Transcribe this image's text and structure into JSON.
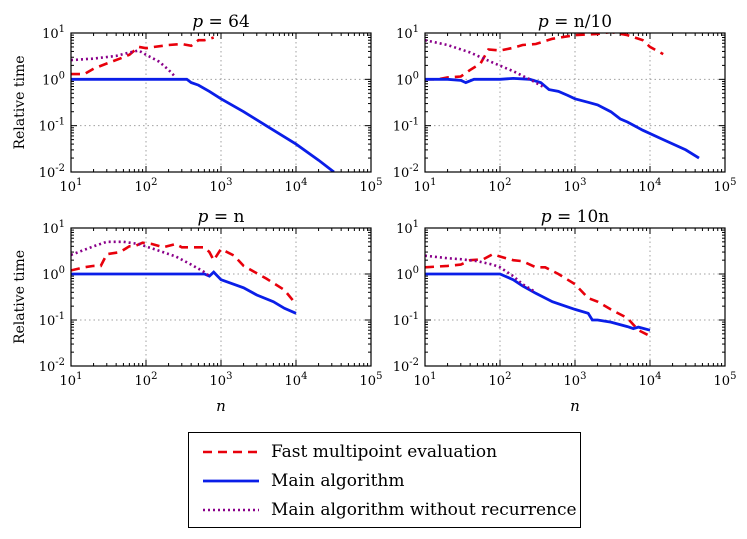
{
  "chart_data": {
    "type": "line",
    "xscale": "log",
    "yscale": "log",
    "xlim": [
      10,
      100000
    ],
    "ylim": [
      0.01,
      10
    ],
    "x_tick_labels": [
      "10^1",
      "10^2",
      "10^3",
      "10^4",
      "10^5"
    ],
    "y_tick_labels": [
      "10^-2",
      "10^-1",
      "10^0",
      "10^1"
    ],
    "grid": true,
    "legend_position": "bottom-center",
    "styles": {
      "fast": {
        "color": "#e8000b",
        "dash": "9,6",
        "width": 2.6
      },
      "main": {
        "color": "#0a1ee8",
        "dash": "",
        "width": 2.8
      },
      "norec": {
        "color": "#8a008a",
        "dash": "2,3",
        "width": 2.6
      }
    },
    "legend": [
      {
        "series": "fast",
        "label": "Fast multipoint evaluation"
      },
      {
        "series": "main",
        "label": "Main algorithm"
      },
      {
        "series": "norec",
        "label": "Main algorithm without recurrence"
      }
    ],
    "panels": [
      {
        "title": "p = 64",
        "title_var": "p",
        "title_rest": "= 64",
        "xlabel": "",
        "ylabel": "Relative time",
        "series": {
          "fast": [
            [
              10,
              1.3
            ],
            [
              15,
              1.3
            ],
            [
              20,
              1.7
            ],
            [
              30,
              2.2
            ],
            [
              45,
              2.8
            ],
            [
              60,
              3.4
            ],
            [
              80,
              5.0
            ],
            [
              100,
              4.7
            ],
            [
              130,
              5.0
            ],
            [
              200,
              5.5
            ],
            [
              300,
              5.8
            ],
            [
              400,
              5.3
            ],
            [
              500,
              7.0
            ],
            [
              600,
              7.0
            ],
            [
              800,
              8.0
            ]
          ],
          "main": [
            [
              10,
              1.0
            ],
            [
              50,
              1.0
            ],
            [
              100,
              1.0
            ],
            [
              200,
              1.0
            ],
            [
              350,
              1.0
            ],
            [
              400,
              0.85
            ],
            [
              500,
              0.75
            ],
            [
              700,
              0.55
            ],
            [
              1000,
              0.38
            ],
            [
              2000,
              0.2
            ],
            [
              4000,
              0.1
            ],
            [
              10000,
              0.04
            ],
            [
              20000,
              0.018
            ],
            [
              32000,
              0.01
            ]
          ],
          "norec": [
            [
              10,
              2.6
            ],
            [
              20,
              2.8
            ],
            [
              40,
              3.2
            ],
            [
              60,
              3.8
            ],
            [
              80,
              4.2
            ],
            [
              100,
              3.4
            ],
            [
              150,
              2.4
            ],
            [
              200,
              1.6
            ],
            [
              250,
              1.1
            ]
          ]
        }
      },
      {
        "title": "p = n/10",
        "title_var": "p",
        "title_rest": "= n/10",
        "xlabel": "",
        "ylabel": "",
        "series": {
          "fast": [
            [
              10,
              1.0
            ],
            [
              15,
              1.0
            ],
            [
              20,
              1.1
            ],
            [
              30,
              1.15
            ],
            [
              40,
              1.6
            ],
            [
              55,
              2.2
            ],
            [
              70,
              4.4
            ],
            [
              100,
              4.2
            ],
            [
              150,
              4.8
            ],
            [
              200,
              5.5
            ],
            [
              300,
              5.8
            ],
            [
              500,
              7.5
            ],
            [
              1000,
              9.0
            ],
            [
              2000,
              9.5
            ],
            [
              3000,
              10.5
            ],
            [
              5000,
              9.0
            ],
            [
              8000,
              7.0
            ],
            [
              10000,
              5.0
            ],
            [
              15000,
              3.5
            ]
          ],
          "main": [
            [
              10,
              1.0
            ],
            [
              20,
              1.0
            ],
            [
              30,
              0.95
            ],
            [
              35,
              0.85
            ],
            [
              45,
              1.0
            ],
            [
              60,
              1.0
            ],
            [
              80,
              1.0
            ],
            [
              100,
              1.0
            ],
            [
              150,
              1.05
            ],
            [
              250,
              1.0
            ],
            [
              350,
              0.85
            ],
            [
              450,
              0.6
            ],
            [
              600,
              0.55
            ],
            [
              800,
              0.45
            ],
            [
              1000,
              0.38
            ],
            [
              1500,
              0.32
            ],
            [
              2000,
              0.28
            ],
            [
              3000,
              0.2
            ],
            [
              4000,
              0.14
            ],
            [
              5000,
              0.12
            ],
            [
              8000,
              0.08
            ],
            [
              15000,
              0.05
            ],
            [
              30000,
              0.03
            ],
            [
              45000,
              0.02
            ]
          ],
          "norec": [
            [
              10,
              7.0
            ],
            [
              20,
              5.5
            ],
            [
              40,
              3.8
            ],
            [
              80,
              2.3
            ],
            [
              150,
              1.5
            ],
            [
              250,
              1.0
            ],
            [
              400,
              0.65
            ]
          ]
        }
      },
      {
        "title": "p = n",
        "title_var": "p",
        "title_rest": "= n",
        "xlabel": "n",
        "ylabel": "Relative time",
        "series": {
          "fast": [
            [
              10,
              1.2
            ],
            [
              15,
              1.4
            ],
            [
              20,
              1.5
            ],
            [
              25,
              1.5
            ],
            [
              30,
              2.7
            ],
            [
              45,
              3.0
            ],
            [
              60,
              4.0
            ],
            [
              70,
              4.0
            ],
            [
              90,
              4.8
            ],
            [
              120,
              4.5
            ],
            [
              170,
              3.8
            ],
            [
              250,
              4.5
            ],
            [
              300,
              3.8
            ],
            [
              600,
              3.8
            ],
            [
              700,
              3.0
            ],
            [
              800,
              2.0
            ],
            [
              1000,
              3.5
            ],
            [
              1500,
              2.5
            ],
            [
              2000,
              1.5
            ],
            [
              4000,
              0.8
            ],
            [
              7000,
              0.45
            ],
            [
              10000,
              0.22
            ]
          ],
          "main": [
            [
              10,
              1.0
            ],
            [
              30,
              1.0
            ],
            [
              100,
              1.0
            ],
            [
              300,
              1.0
            ],
            [
              600,
              1.0
            ],
            [
              700,
              0.9
            ],
            [
              800,
              1.1
            ],
            [
              1000,
              0.75
            ],
            [
              2000,
              0.5
            ],
            [
              3000,
              0.35
            ],
            [
              5000,
              0.25
            ],
            [
              7000,
              0.18
            ],
            [
              10000,
              0.14
            ]
          ],
          "norec": [
            [
              10,
              2.6
            ],
            [
              20,
              4.0
            ],
            [
              30,
              5.0
            ],
            [
              50,
              5.0
            ],
            [
              80,
              4.5
            ],
            [
              150,
              3.2
            ],
            [
              250,
              2.4
            ],
            [
              400,
              1.6
            ],
            [
              600,
              1.1
            ],
            [
              700,
              0.9
            ]
          ]
        }
      },
      {
        "title": "p = 10n",
        "title_var": "p",
        "title_rest": "= 10n",
        "xlabel": "n",
        "ylabel": "",
        "series": {
          "fast": [
            [
              10,
              1.4
            ],
            [
              20,
              1.5
            ],
            [
              30,
              1.6
            ],
            [
              40,
              2.0
            ],
            [
              60,
              2.1
            ],
            [
              80,
              2.7
            ],
            [
              100,
              2.4
            ],
            [
              150,
              2.0
            ],
            [
              200,
              1.9
            ],
            [
              300,
              1.4
            ],
            [
              400,
              1.4
            ],
            [
              600,
              1.0
            ],
            [
              1000,
              0.6
            ],
            [
              1500,
              0.3
            ],
            [
              2000,
              0.25
            ],
            [
              3000,
              0.17
            ],
            [
              5000,
              0.11
            ],
            [
              7000,
              0.06
            ],
            [
              10000,
              0.045
            ]
          ],
          "main": [
            [
              10,
              1.0
            ],
            [
              50,
              1.0
            ],
            [
              100,
              1.0
            ],
            [
              150,
              0.75
            ],
            [
              200,
              0.55
            ],
            [
              300,
              0.38
            ],
            [
              500,
              0.25
            ],
            [
              1000,
              0.17
            ],
            [
              1500,
              0.14
            ],
            [
              1700,
              0.1
            ],
            [
              2000,
              0.1
            ],
            [
              3000,
              0.09
            ],
            [
              5000,
              0.072
            ],
            [
              6000,
              0.065
            ],
            [
              7000,
              0.07
            ],
            [
              10000,
              0.06
            ]
          ],
          "norec": [
            [
              10,
              2.5
            ],
            [
              20,
              2.2
            ],
            [
              30,
              2.1
            ],
            [
              50,
              1.9
            ],
            [
              80,
              1.6
            ],
            [
              100,
              1.4
            ],
            [
              150,
              0.9
            ],
            [
              200,
              0.6
            ],
            [
              300,
              0.4
            ]
          ]
        }
      }
    ]
  }
}
